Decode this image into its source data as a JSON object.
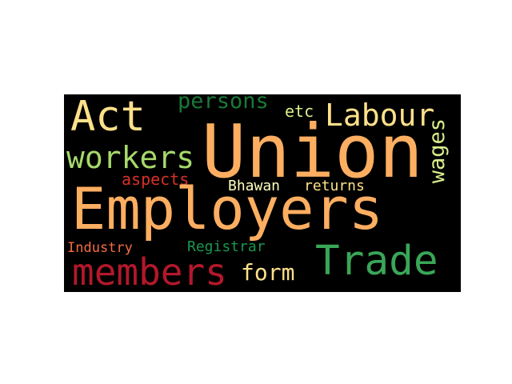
{
  "word_cloud": {
    "background": "#000000",
    "words": [
      {
        "id": "employers",
        "text": "Employers",
        "color": "#fdae61"
      },
      {
        "id": "union",
        "text": "Union",
        "color": "#fdae61"
      },
      {
        "id": "trade",
        "text": "Trade",
        "color": "#3aa657"
      },
      {
        "id": "act",
        "text": "Act",
        "color": "#fee08b"
      },
      {
        "id": "labour",
        "text": "Labour",
        "color": "#fee08b"
      },
      {
        "id": "members",
        "text": "members",
        "color": "#b2182b"
      },
      {
        "id": "workers",
        "text": "workers",
        "color": "#a6d96a"
      },
      {
        "id": "persons",
        "text": "persons",
        "color": "#1a7837"
      },
      {
        "id": "wages",
        "text": "wages",
        "color": "#d9ef8b"
      },
      {
        "id": "form",
        "text": "form",
        "color": "#fee08b"
      },
      {
        "id": "etc",
        "text": "etc",
        "color": "#d9ef8b"
      },
      {
        "id": "aspects",
        "text": "aspects",
        "color": "#d73027"
      },
      {
        "id": "bhawan",
        "text": "Bhawan",
        "color": "#ffffbf"
      },
      {
        "id": "returns",
        "text": "returns",
        "color": "#fee08b"
      },
      {
        "id": "registrar",
        "text": "Registrar",
        "color": "#1a9850"
      },
      {
        "id": "industry",
        "text": "Industry",
        "color": "#f46d43"
      }
    ]
  }
}
